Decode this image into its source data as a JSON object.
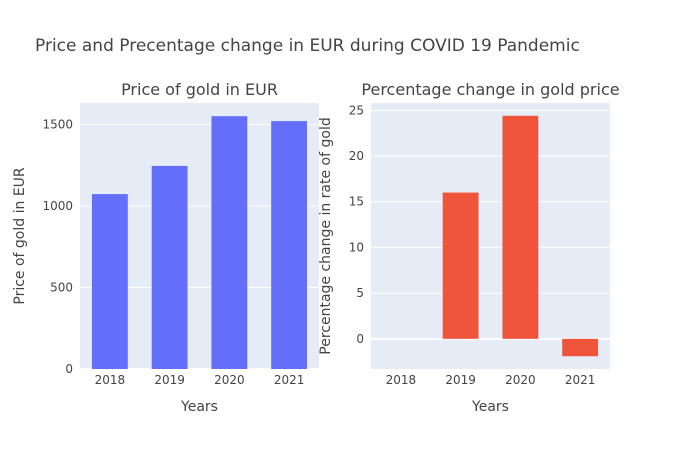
{
  "title": "Price and Precentage change in EUR during COVID 19 Pandemic",
  "chart_data": [
    {
      "type": "bar",
      "title": "Price of gold in EUR",
      "xlabel": "Years",
      "ylabel": "Price of gold in EUR",
      "categories": [
        "2018",
        "2019",
        "2020",
        "2021"
      ],
      "values": [
        1073,
        1246,
        1551,
        1521
      ],
      "ylim": [
        0,
        1632
      ],
      "yticks": [
        0,
        500,
        1000,
        1500
      ],
      "grid": true,
      "color": "#636efa"
    },
    {
      "type": "bar",
      "title": "Percentage change in gold price",
      "xlabel": "Years",
      "ylabel": "Percentage change in rate of gold",
      "categories": [
        "2018",
        "2019",
        "2020",
        "2021"
      ],
      "values": [
        0,
        16.0,
        24.4,
        -1.9
      ],
      "ylim": [
        -3.3,
        25.8
      ],
      "yticks": [
        0,
        5,
        10,
        15,
        20,
        25
      ],
      "grid": true,
      "color": "#ef553b"
    }
  ]
}
